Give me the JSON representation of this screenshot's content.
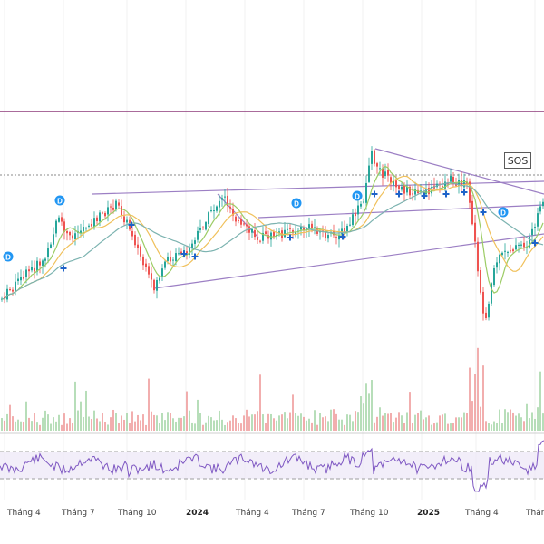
{
  "annotation": {
    "label": "SOS"
  },
  "time_axis": {
    "ticks": [
      {
        "label": "Tháng 4",
        "bold": false
      },
      {
        "label": "Tháng 7",
        "bold": false
      },
      {
        "label": "Tháng 10",
        "bold": false
      },
      {
        "label": "2024",
        "bold": true
      },
      {
        "label": "Tháng 4",
        "bold": false
      },
      {
        "label": "Tháng 7",
        "bold": false
      },
      {
        "label": "Tháng 10",
        "bold": false
      },
      {
        "label": "2025",
        "bold": true
      },
      {
        "label": "Tháng 4",
        "bold": false
      },
      {
        "label": "Tháng",
        "bold": false
      }
    ]
  },
  "colors": {
    "candle_up": "#26a69a",
    "candle_down": "#ef5350",
    "ma_fast": "#9ccc65",
    "ma_mid": "#f0c05a",
    "ma_slow": "#7cb3b0",
    "trendline": "#9c7fc4",
    "resistance": "#8e3a7a",
    "rsi": "#7e57c2",
    "dividend_marker": "#2196f3"
  },
  "markers": {
    "dividend_glyph": "D",
    "cross_glyph": "+"
  }
}
